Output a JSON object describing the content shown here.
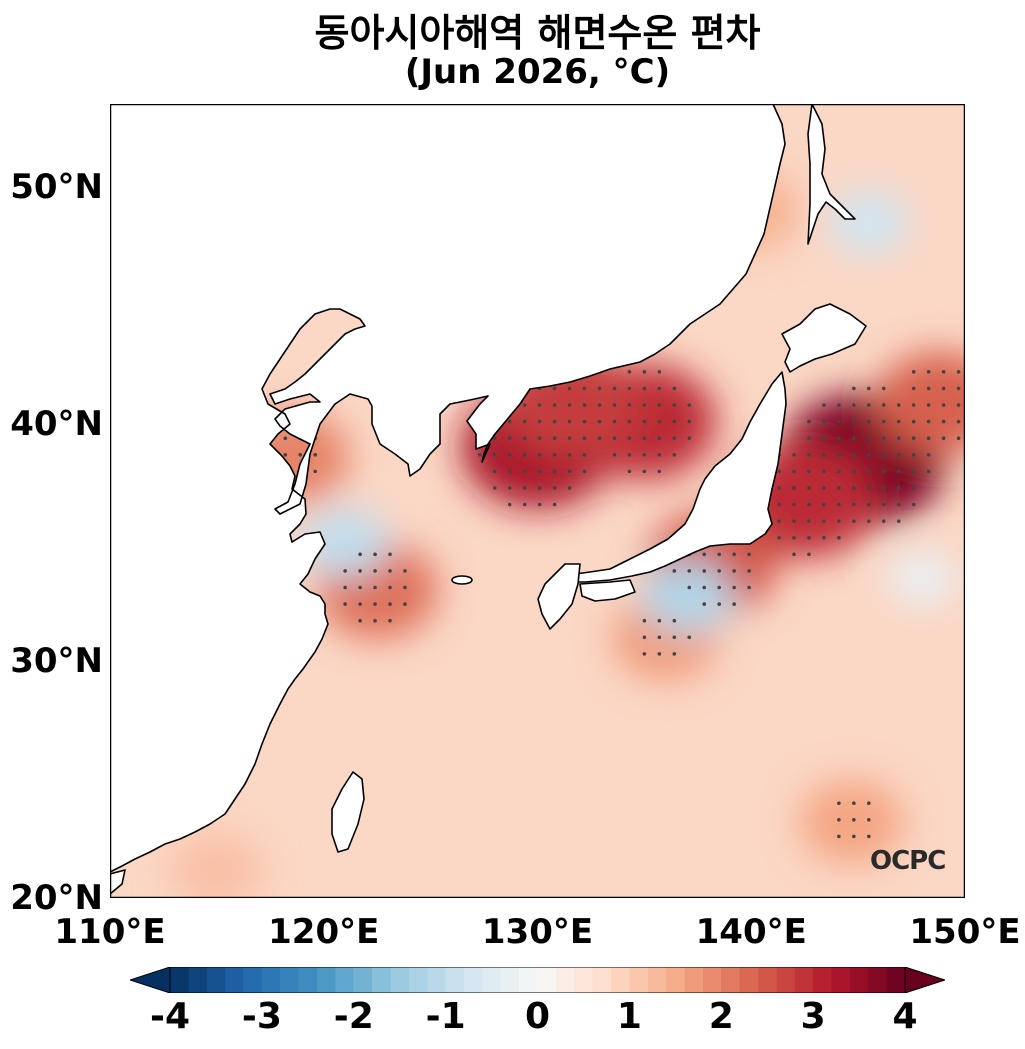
{
  "title": {
    "line1": "동아시아해역 해면수온 편차",
    "line2": "(Jun 2026, °C)"
  },
  "map": {
    "lon_range": [
      110,
      150
    ],
    "lat_range": [
      20,
      53.5
    ],
    "y_ticks": [
      {
        "lat": 50,
        "label": "50°N"
      },
      {
        "lat": 40,
        "label": "40°N"
      },
      {
        "lat": 30,
        "label": "30°N"
      },
      {
        "lat": 20,
        "label": "20°N"
      }
    ],
    "x_ticks": [
      {
        "lon": 110,
        "label": "110°E"
      },
      {
        "lon": 120,
        "label": "120°E"
      },
      {
        "lon": 130,
        "label": "130°E"
      },
      {
        "lon": 140,
        "label": "140°E"
      },
      {
        "lon": 150,
        "label": "150°E"
      }
    ],
    "logo": "OCPC",
    "hotspots": [
      {
        "lon": 145.2,
        "lat": 38.5,
        "anomaly": 3.8
      },
      {
        "lon": 130.0,
        "lat": 39.0,
        "anomaly": 3.3
      },
      {
        "lon": 135.0,
        "lat": 40.1,
        "anomaly": 3.0
      },
      {
        "lon": 131.5,
        "lat": 40.9,
        "anomaly": 2.8
      },
      {
        "lon": 142.5,
        "lat": 36.8,
        "anomaly": 3.0
      },
      {
        "lon": 148.8,
        "lat": 40.9,
        "anomaly": 2.4
      },
      {
        "lon": 138.2,
        "lat": 34.1,
        "anomaly": 2.5
      },
      {
        "lon": 122.5,
        "lat": 33.0,
        "anomaly": 2.2
      },
      {
        "lon": 118.5,
        "lat": 38.6,
        "anomaly": 2.0
      },
      {
        "lon": 140.0,
        "lat": 49.0,
        "anomaly": 1.4
      },
      {
        "lon": 136.0,
        "lat": 31.0,
        "anomaly": 1.7
      },
      {
        "lon": 144.7,
        "lat": 23.2,
        "anomaly": 1.6
      },
      {
        "lon": 115.0,
        "lat": 21.2,
        "anomaly": 1.2
      },
      {
        "lon": 137.0,
        "lat": 32.7,
        "anomaly": -1.2
      },
      {
        "lon": 145.5,
        "lat": 48.5,
        "anomaly": -0.8
      },
      {
        "lon": 121.0,
        "lat": 35.0,
        "anomaly": -1.0
      },
      {
        "lon": 148.0,
        "lat": 33.5,
        "anomaly": -0.3
      }
    ]
  },
  "colorbar": {
    "min": -4,
    "max": 4,
    "colors": [
      "#053061",
      "#2166ac",
      "#4393c3",
      "#92c5de",
      "#d1e5f0",
      "#f7f7f7",
      "#fddbc7",
      "#f4a582",
      "#d6604d",
      "#b2182b",
      "#67001f"
    ],
    "labels": [
      "-4",
      "-3",
      "-2",
      "-1",
      "0",
      "1",
      "2",
      "3",
      "4"
    ]
  }
}
